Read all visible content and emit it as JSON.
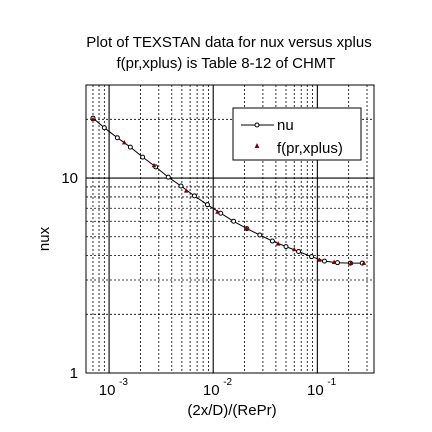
{
  "chart_data": {
    "type": "line",
    "title": "Plot of TEXSTAN data for nux versus xplus",
    "subtitle": "f(pr,xplus) is Table 8-12 of CHMT",
    "xlabel": "(2x/D)/(RePr)",
    "ylabel": "nux",
    "xscale": "log",
    "yscale": "log",
    "xlim": [
      0.0006,
      0.35
    ],
    "ylim": [
      1,
      30
    ],
    "x_ticks": [
      {
        "value": 0.001,
        "base": "10",
        "exp": "-3"
      },
      {
        "value": 0.01,
        "base": "10",
        "exp": "-2"
      },
      {
        "value": 0.1,
        "base": "10",
        "exp": "-1"
      }
    ],
    "y_ticks": [
      {
        "value": 1,
        "label": "1"
      },
      {
        "value": 10,
        "label": "10"
      }
    ],
    "grid": true,
    "legend_position": "top-right",
    "series": [
      {
        "name": "nu",
        "style": "line-with-circles",
        "color": "#000000",
        "x": [
          0.0007,
          0.0009,
          0.0012,
          0.0016,
          0.0021,
          0.0028,
          0.0037,
          0.0049,
          0.0066,
          0.0088,
          0.0118,
          0.0157,
          0.021,
          0.028,
          0.037,
          0.05,
          0.066,
          0.088,
          0.117,
          0.156,
          0.208,
          0.27
        ],
        "y": [
          20.3,
          18.1,
          16.1,
          14.4,
          12.8,
          11.4,
          10.1,
          9.1,
          8.1,
          7.3,
          6.6,
          6.0,
          5.5,
          5.1,
          4.75,
          4.45,
          4.2,
          3.95,
          3.75,
          3.68,
          3.66,
          3.66
        ]
      },
      {
        "name": "f(pr,xplus)",
        "style": "triangles",
        "color": "#800000",
        "x": [
          0.0007,
          0.0014,
          0.0027,
          0.0055,
          0.011,
          0.021,
          0.042,
          0.06,
          0.105,
          0.145,
          0.21,
          0.28
        ],
        "y": [
          20.0,
          15.2,
          11.6,
          8.6,
          6.7,
          5.5,
          4.6,
          4.3,
          3.8,
          3.7,
          3.66,
          3.66
        ]
      }
    ]
  }
}
